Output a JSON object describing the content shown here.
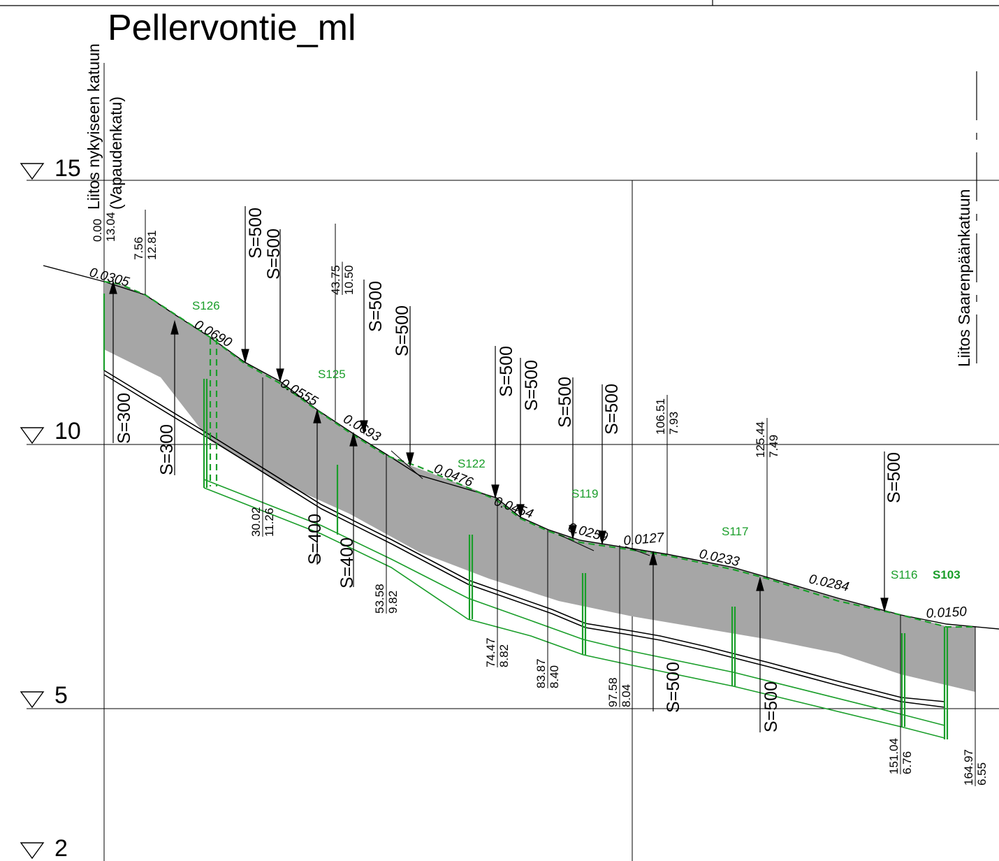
{
  "title": "Pellervontie_ml",
  "colors": {
    "ink": "#000000",
    "green": "#1a9e2a",
    "fill": "#a6a6a6",
    "bg": "#ffffff"
  },
  "left_label_1": "Liitos nykyiseen katuun",
  "left_label_2": "(Vapaudenkatu)",
  "right_label": "Liitos Saarenpäänkatuun",
  "elevations": [
    "15",
    "10",
    "5",
    "2"
  ],
  "station_labels": [
    {
      "st": "0.00",
      "z": "13.04"
    },
    {
      "st": "7.56",
      "z": "12.81"
    },
    {
      "st": "30.02",
      "z": "11.26"
    },
    {
      "st": "43.75",
      "z": "10.50"
    },
    {
      "st": "53.58",
      "z": "9.82"
    },
    {
      "st": "74.47",
      "z": "8.82"
    },
    {
      "st": "83.87",
      "z": "8.40"
    },
    {
      "st": "97.58",
      "z": "8.04"
    },
    {
      "st": "106.51",
      "z": "7.93"
    },
    {
      "st": "125.44",
      "z": "7.49"
    },
    {
      "st": "151.04",
      "z": "6.76"
    },
    {
      "st": "164.97",
      "z": "6.55"
    }
  ],
  "slopes": [
    "0.0305",
    "0.0690",
    "0.0555",
    "0.0693",
    "0.0476",
    "0.0454",
    "0.0259",
    "0.0127",
    "0.0233",
    "0.0284",
    "0.0150"
  ],
  "curve_labels": [
    "S=300",
    "S=300",
    "S=500",
    "S=500",
    "S=400",
    "S=400",
    "S=500",
    "S=500",
    "S=500",
    "S=500",
    "S=500",
    "S=500",
    "S=500",
    "S=500",
    "S=500"
  ],
  "structures": [
    "S126",
    "S125",
    "S122",
    "S119",
    "S117",
    "S116",
    "S103"
  ]
}
